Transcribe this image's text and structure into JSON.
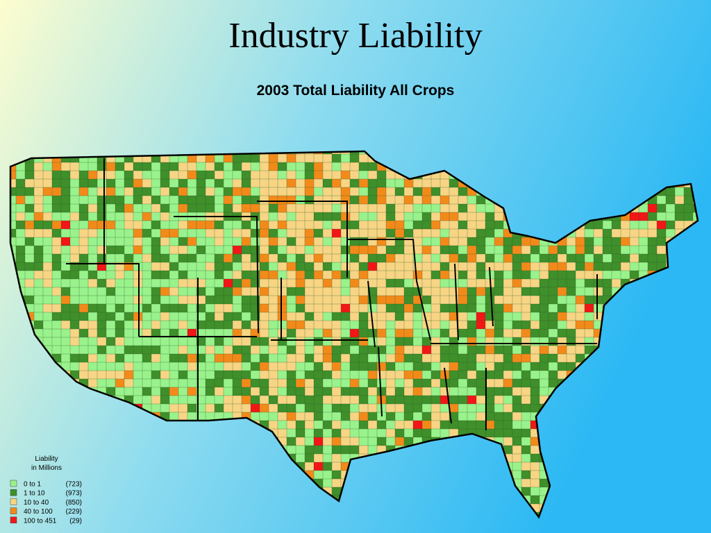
{
  "header": {
    "title": "Industry Liability",
    "subtitle": "2003 Total Liability All Crops"
  },
  "legend": {
    "title": "Liability",
    "subtitle": "in Millions",
    "items": [
      {
        "range": "0 to 1",
        "count": "(723)",
        "color": "#99f28c"
      },
      {
        "range": "1 to 10",
        "count": "(973)",
        "color": "#3f8f2a"
      },
      {
        "range": "10 to 40",
        "count": "(850)",
        "color": "#f7d584"
      },
      {
        "range": "40 to 100",
        "count": "(229)",
        "color": "#f28a1a"
      },
      {
        "range": "100 to 451",
        "count": "(29)",
        "color": "#f21616"
      }
    ]
  }
}
